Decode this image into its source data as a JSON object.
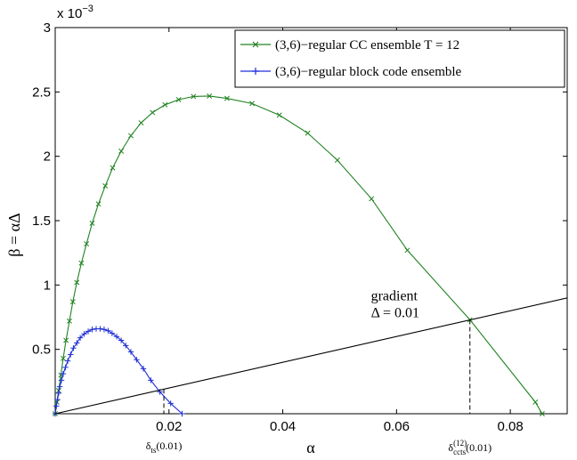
{
  "chart_data": {
    "type": "line",
    "xlabel": "α",
    "ylabel": "β = αΔ",
    "y_multiplier_label": "x 10",
    "y_multiplier_exp": "−3",
    "xlim": [
      0,
      0.09
    ],
    "ylim": [
      0,
      3
    ],
    "x_ticks": [
      0.02,
      0.04,
      0.06,
      0.08
    ],
    "x_tick_labels": [
      "0.02",
      "0.04",
      "0.06",
      "0.08"
    ],
    "y_ticks": [
      0.5,
      1,
      1.5,
      2,
      2.5,
      3
    ],
    "y_tick_labels": [
      "0.5",
      "1",
      "1.5",
      "2",
      "2.5",
      "3"
    ],
    "grid": false,
    "legend_position": "top-right",
    "colors": {
      "cc": "#218221",
      "block": "#1f2fd6",
      "gradient": "#000000"
    },
    "series": [
      {
        "name": "(3,6)−regular CC ensemble T = 12",
        "marker": "x",
        "x": [
          0,
          0.0003,
          0.0006,
          0.001,
          0.0014,
          0.0019,
          0.0025,
          0.0031,
          0.0038,
          0.0046,
          0.0055,
          0.0065,
          0.0076,
          0.0088,
          0.0101,
          0.0116,
          0.0133,
          0.0151,
          0.0171,
          0.0193,
          0.0217,
          0.0243,
          0.0271,
          0.0302,
          0.0346,
          0.0394,
          0.0444,
          0.0496,
          0.0556,
          0.0619,
          0.0729,
          0.0844,
          0.0856
        ],
        "y": [
          0,
          0.09,
          0.18,
          0.3,
          0.43,
          0.57,
          0.72,
          0.87,
          1.02,
          1.17,
          1.32,
          1.48,
          1.63,
          1.77,
          1.91,
          2.04,
          2.16,
          2.26,
          2.34,
          2.4,
          2.44,
          2.465,
          2.468,
          2.45,
          2.41,
          2.32,
          2.18,
          1.97,
          1.67,
          1.27,
          0.73,
          0.09,
          0.0
        ]
      },
      {
        "name": "(3,6)−regular block code ensemble",
        "marker": "+",
        "x": [
          0,
          0.0002,
          0.0004,
          0.0006,
          0.0008,
          0.0011,
          0.0014,
          0.0018,
          0.0022,
          0.0027,
          0.0032,
          0.0038,
          0.0044,
          0.0051,
          0.0058,
          0.0065,
          0.0072,
          0.0079,
          0.0086,
          0.0093,
          0.01,
          0.0108,
          0.0116,
          0.0124,
          0.0133,
          0.0143,
          0.0155,
          0.0168,
          0.0184,
          0.0203,
          0.0223
        ],
        "y": [
          0,
          0.06,
          0.11,
          0.16,
          0.21,
          0.26,
          0.31,
          0.36,
          0.41,
          0.46,
          0.51,
          0.55,
          0.59,
          0.62,
          0.64,
          0.655,
          0.66,
          0.66,
          0.655,
          0.645,
          0.625,
          0.6,
          0.57,
          0.53,
          0.48,
          0.42,
          0.35,
          0.26,
          0.17,
          0.08,
          0.0
        ]
      },
      {
        "name": "",
        "marker": "none",
        "x": [
          0,
          0.09
        ],
        "y": [
          0,
          0.9
        ]
      }
    ],
    "annotations": {
      "gradient_label_line1": "gradient",
      "gradient_label_line2": "Δ = 0.01",
      "ts_base": "δ",
      "ts_sub": "ts",
      "ts_tail": "(0.01)",
      "ts_x": 0.0191,
      "ts_y": 0.191,
      "ccts_base": "δ",
      "ccts_sup": "(12)",
      "ccts_sub": "ccts",
      "ccts_tail": "(0.01)",
      "ccts_x": 0.0729,
      "ccts_y": 0.729,
      "gradient_label_anchor": [
        0.0555,
        0.84
      ]
    }
  }
}
